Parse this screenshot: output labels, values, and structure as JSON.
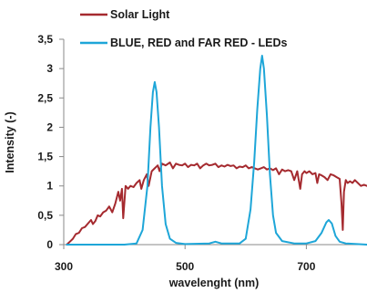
{
  "chart_data": {
    "type": "line",
    "title": "",
    "xlabel": "wavelenght (nm)",
    "ylabel": "Intensity (-)",
    "xlim": [
      300,
      800
    ],
    "ylim": [
      0,
      3.5
    ],
    "x_ticks": [
      300,
      500,
      700
    ],
    "y_ticks": [
      0,
      0.5,
      1,
      1.5,
      2,
      2.5,
      3,
      3.5
    ],
    "x_tick_labels": [
      "300",
      "500",
      "700"
    ],
    "y_tick_labels": [
      "0",
      "0,5",
      "1",
      "1,5",
      "2",
      "2,5",
      "3",
      "3,5"
    ],
    "grid": false,
    "legend_position": "top",
    "series": [
      {
        "name": "Solar Light",
        "color": "#a52a2f",
        "points": [
          [
            305,
            0.0
          ],
          [
            310,
            0.05
          ],
          [
            315,
            0.1
          ],
          [
            320,
            0.18
          ],
          [
            325,
            0.2
          ],
          [
            330,
            0.28
          ],
          [
            335,
            0.3
          ],
          [
            340,
            0.36
          ],
          [
            345,
            0.42
          ],
          [
            348,
            0.35
          ],
          [
            352,
            0.4
          ],
          [
            356,
            0.5
          ],
          [
            360,
            0.48
          ],
          [
            365,
            0.55
          ],
          [
            370,
            0.58
          ],
          [
            375,
            0.65
          ],
          [
            380,
            0.55
          ],
          [
            385,
            0.7
          ],
          [
            390,
            0.9
          ],
          [
            393,
            0.75
          ],
          [
            396,
            0.95
          ],
          [
            398,
            0.45
          ],
          [
            402,
            1.0
          ],
          [
            406,
            0.95
          ],
          [
            410,
            1.0
          ],
          [
            415,
            0.98
          ],
          [
            420,
            1.05
          ],
          [
            425,
            1.1
          ],
          [
            428,
            0.95
          ],
          [
            432,
            1.1
          ],
          [
            437,
            1.2
          ],
          [
            440,
            1.0
          ],
          [
            445,
            1.25
          ],
          [
            450,
            1.3
          ],
          [
            455,
            1.35
          ],
          [
            458,
            1.25
          ],
          [
            462,
            1.38
          ],
          [
            468,
            1.35
          ],
          [
            475,
            1.4
          ],
          [
            480,
            1.3
          ],
          [
            485,
            1.38
          ],
          [
            490,
            1.36
          ],
          [
            495,
            1.35
          ],
          [
            500,
            1.38
          ],
          [
            505,
            1.32
          ],
          [
            510,
            1.36
          ],
          [
            515,
            1.35
          ],
          [
            520,
            1.38
          ],
          [
            525,
            1.3
          ],
          [
            530,
            1.35
          ],
          [
            535,
            1.38
          ],
          [
            540,
            1.35
          ],
          [
            545,
            1.36
          ],
          [
            550,
            1.38
          ],
          [
            555,
            1.32
          ],
          [
            560,
            1.35
          ],
          [
            565,
            1.33
          ],
          [
            570,
            1.36
          ],
          [
            575,
            1.34
          ],
          [
            580,
            1.35
          ],
          [
            585,
            1.3
          ],
          [
            590,
            1.33
          ],
          [
            595,
            1.32
          ],
          [
            600,
            1.35
          ],
          [
            605,
            1.3
          ],
          [
            610,
            1.32
          ],
          [
            615,
            1.3
          ],
          [
            620,
            1.28
          ],
          [
            625,
            1.3
          ],
          [
            630,
            1.32
          ],
          [
            635,
            1.28
          ],
          [
            640,
            1.3
          ],
          [
            645,
            1.27
          ],
          [
            650,
            1.3
          ],
          [
            655,
            1.2
          ],
          [
            660,
            1.28
          ],
          [
            665,
            1.25
          ],
          [
            670,
            1.27
          ],
          [
            675,
            1.25
          ],
          [
            680,
            1.1
          ],
          [
            685,
            1.25
          ],
          [
            690,
            0.95
          ],
          [
            693,
            1.2
          ],
          [
            697,
            1.25
          ],
          [
            700,
            1.22
          ],
          [
            705,
            1.25
          ],
          [
            710,
            1.2
          ],
          [
            715,
            1.22
          ],
          [
            718,
            1.05
          ],
          [
            721,
            1.2
          ],
          [
            725,
            1.18
          ],
          [
            730,
            1.15
          ],
          [
            735,
            1.1
          ],
          [
            740,
            1.2
          ],
          [
            745,
            1.18
          ],
          [
            750,
            1.15
          ],
          [
            755,
            1.12
          ],
          [
            758,
            0.7
          ],
          [
            760,
            0.25
          ],
          [
            762,
            0.9
          ],
          [
            765,
            1.1
          ],
          [
            768,
            1.05
          ],
          [
            772,
            1.08
          ],
          [
            776,
            1.05
          ],
          [
            780,
            1.1
          ],
          [
            785,
            1.05
          ],
          [
            790,
            1.0
          ],
          [
            795,
            1.02
          ],
          [
            800,
            1.0
          ]
        ]
      },
      {
        "name": "BLUE, RED and FAR RED - LEDs",
        "color": "#1ea6d8",
        "points": [
          [
            305,
            0.0
          ],
          [
            400,
            0.0
          ],
          [
            420,
            0.02
          ],
          [
            430,
            0.25
          ],
          [
            438,
            1.0
          ],
          [
            443,
            2.0
          ],
          [
            447,
            2.6
          ],
          [
            450,
            2.77
          ],
          [
            453,
            2.6
          ],
          [
            457,
            2.0
          ],
          [
            462,
            1.0
          ],
          [
            468,
            0.35
          ],
          [
            475,
            0.1
          ],
          [
            485,
            0.03
          ],
          [
            500,
            0.01
          ],
          [
            540,
            0.02
          ],
          [
            550,
            0.05
          ],
          [
            560,
            0.02
          ],
          [
            590,
            0.02
          ],
          [
            600,
            0.1
          ],
          [
            608,
            0.6
          ],
          [
            614,
            1.4
          ],
          [
            619,
            2.3
          ],
          [
            624,
            3.0
          ],
          [
            627,
            3.22
          ],
          [
            630,
            3.0
          ],
          [
            635,
            2.2
          ],
          [
            640,
            1.2
          ],
          [
            645,
            0.5
          ],
          [
            650,
            0.2
          ],
          [
            660,
            0.06
          ],
          [
            680,
            0.02
          ],
          [
            700,
            0.02
          ],
          [
            715,
            0.06
          ],
          [
            725,
            0.2
          ],
          [
            733,
            0.38
          ],
          [
            737,
            0.42
          ],
          [
            742,
            0.36
          ],
          [
            748,
            0.15
          ],
          [
            755,
            0.05
          ],
          [
            765,
            0.02
          ],
          [
            800,
            0.0
          ]
        ]
      }
    ]
  }
}
